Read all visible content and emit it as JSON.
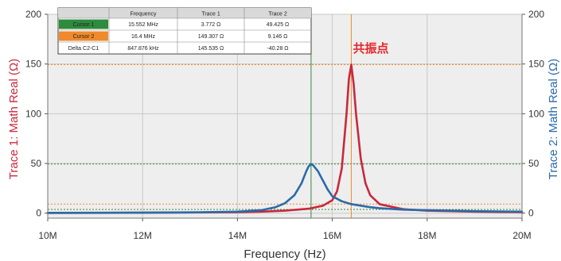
{
  "chart_data": {
    "type": "line",
    "xlabel": "Frequency (Hz)",
    "ylabel_left": "Trace 1: Math Real (Ω)",
    "ylabel_right": "Trace 2: Math Real (Ω)",
    "xlim": [
      10000000,
      20000000
    ],
    "ylim": [
      -5,
      200
    ],
    "x_tick_labels": [
      "10M",
      "12M",
      "14M",
      "16M",
      "18M",
      "20M"
    ],
    "y_tick_labels": [
      "0",
      "50",
      "100",
      "150",
      "200"
    ],
    "grid": true,
    "annotation": "共振点",
    "series": [
      {
        "name": "Trace 1",
        "color": "#c8283c",
        "axis": "left",
        "x": [
          10000000,
          11000000,
          12000000,
          13000000,
          14000000,
          14500000,
          15000000,
          15500000,
          15800000,
          16000000,
          16100000,
          16200000,
          16300000,
          16350000,
          16400000,
          16450000,
          16500000,
          16600000,
          16700000,
          16800000,
          17000000,
          17500000,
          18000000,
          19000000,
          20000000
        ],
        "values": [
          0.3,
          0.4,
          0.5,
          0.7,
          1.0,
          1.5,
          2.5,
          4.5,
          7.5,
          13.0,
          22.0,
          45.0,
          100.0,
          135.0,
          149.3,
          130.0,
          100.0,
          55.0,
          30.0,
          18.0,
          9.0,
          4.0,
          2.5,
          1.5,
          1.0
        ]
      },
      {
        "name": "Trace 2",
        "color": "#2b6aa8",
        "axis": "right",
        "x": [
          10000000,
          11000000,
          12000000,
          13000000,
          14000000,
          14500000,
          14800000,
          15000000,
          15200000,
          15350000,
          15450000,
          15500000,
          15552000,
          15600000,
          15700000,
          15800000,
          15900000,
          16000000,
          16200000,
          16400000,
          16800000,
          17000000,
          17500000,
          18000000,
          19000000,
          20000000
        ],
        "values": [
          0.2,
          0.3,
          0.5,
          0.8,
          1.5,
          3.0,
          6.0,
          10.0,
          18.0,
          30.0,
          42.0,
          47.0,
          49.4,
          48.0,
          42.0,
          33.0,
          24.0,
          17.0,
          12.0,
          9.1,
          6.0,
          5.0,
          3.5,
          3.0,
          2.0,
          1.5
        ]
      }
    ],
    "cursors": [
      {
        "name": "Cursor 1",
        "frequency": 15552000,
        "color": "#2e8b3e"
      },
      {
        "name": "Cursor 2",
        "frequency": 16400000,
        "color": "#f08a2c"
      }
    ],
    "horizontal_markers": [
      {
        "value": 3.772,
        "color": "#2e8b3e"
      },
      {
        "value": 9.146,
        "color": "#f08a2c"
      },
      {
        "value": 49.425,
        "color": "#2e8b3e"
      },
      {
        "value": 149.307,
        "color": "#f08a2c"
      }
    ]
  },
  "cursor_table": {
    "headers": [
      "",
      "Frequency",
      "Trace 1",
      "Trace 2"
    ],
    "rows": [
      {
        "label": "Cursor 1",
        "label_bg": "#2e8b3e",
        "label_color": "#ffffff",
        "frequency": "15.552 MHz",
        "trace1": "3.772 Ω",
        "trace2": "49.425 Ω"
      },
      {
        "label": "Cursor 2",
        "label_bg": "#f08a2c",
        "label_color": "#ffffff",
        "frequency": "16.4 MHz",
        "trace1": "149.307 Ω",
        "trace2": "9.146 Ω"
      },
      {
        "label": "Delta C2-C1",
        "label_bg": "#ffffff",
        "label_color": "#222222",
        "frequency": "847.876 kHz",
        "trace1": "145.535 Ω",
        "trace2": "-40.28 Ω"
      }
    ]
  }
}
